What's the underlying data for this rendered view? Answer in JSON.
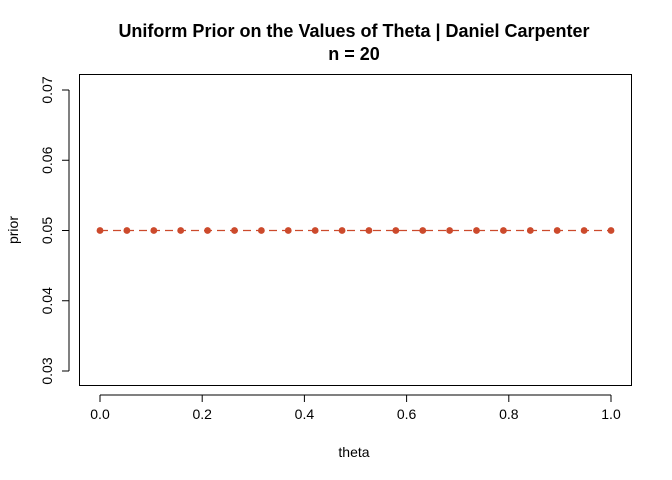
{
  "chart_data": {
    "type": "line",
    "title": "Uniform Prior on the Values of Theta | Daniel Carpenter",
    "subtitle": "n = 20",
    "xlabel": "theta",
    "ylabel": "prior",
    "x_ticks": [
      "0.0",
      "0.2",
      "0.4",
      "0.6",
      "0.8",
      "1.0"
    ],
    "y_ticks": [
      "0.03",
      "0.04",
      "0.05",
      "0.06",
      "0.07"
    ],
    "xlim": [
      0.0,
      1.0
    ],
    "ylim": [
      0.03,
      0.07
    ],
    "grid": false,
    "line_style": "dashed",
    "marker": "filled-circle",
    "color": "#cc4a2c",
    "series": [
      {
        "x": [
          0.0,
          0.0526,
          0.1053,
          0.1579,
          0.2105,
          0.2632,
          0.3158,
          0.3684,
          0.4211,
          0.4737,
          0.5263,
          0.5789,
          0.6316,
          0.6842,
          0.7368,
          0.7895,
          0.8421,
          0.8947,
          0.9474,
          1.0
        ],
        "values": [
          0.05,
          0.05,
          0.05,
          0.05,
          0.05,
          0.05,
          0.05,
          0.05,
          0.05,
          0.05,
          0.05,
          0.05,
          0.05,
          0.05,
          0.05,
          0.05,
          0.05,
          0.05,
          0.05,
          0.05
        ]
      }
    ]
  }
}
